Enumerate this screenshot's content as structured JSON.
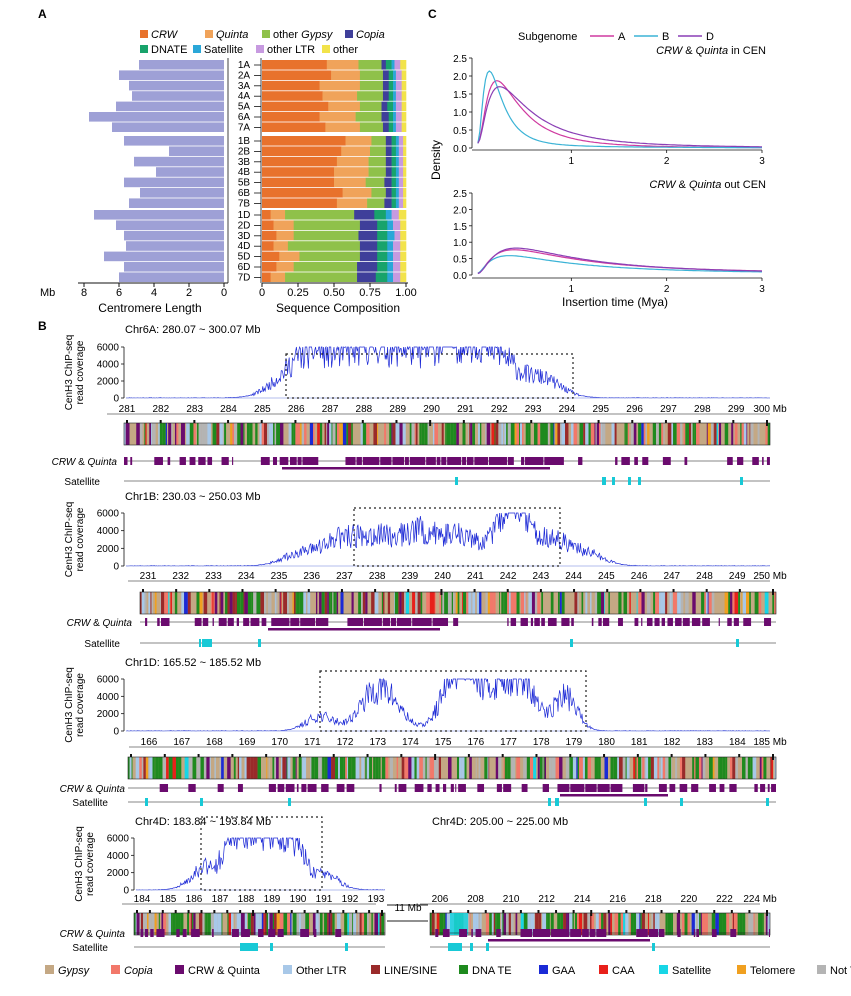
{
  "panel_labels": {
    "a": "A",
    "b": "B",
    "c": "C"
  },
  "colors": {
    "CRW": "#e8722c",
    "Quinta": "#f0a35a",
    "other_gypsy": "#8fc14a",
    "Copia": "#3f3f9a",
    "DNATE": "#18a36b",
    "Satellite": "#2aa7d8",
    "other_LTR": "#c79ae0",
    "other": "#f2e34a",
    "centromere_bar": "#9ea0d6",
    "chip": "#1d2ad6",
    "chip_flat": "#9aa6e6",
    "crw_track": "#6a0b6e",
    "sat_track": "#18c9d6",
    "subgenome_A": "#cf3aa0",
    "subgenome_B": "#3bb3d6",
    "subgenome_D": "#8a3fb5"
  },
  "panel_a": {
    "legend": {
      "crw": "CRW",
      "quinta": "Quinta",
      "other": "other ",
      "gypsy": "Gypsy",
      "copia": "Copia",
      "dnate": "DNATE",
      "satellite": "Satellite",
      "other_ltr": "other LTR",
      "other_cat": "other"
    },
    "chromosomes": [
      "1A",
      "2A",
      "3A",
      "4A",
      "5A",
      "6A",
      "7A",
      "1B",
      "2B",
      "3B",
      "4B",
      "5B",
      "6B",
      "7B",
      "1D",
      "2D",
      "3D",
      "4D",
      "5D",
      "6D",
      "7D"
    ],
    "left_axis": {
      "unit": "Mb",
      "ticks": [
        "8",
        "6",
        "4",
        "2",
        "0"
      ],
      "label": "Centromere Length"
    },
    "right_axis": {
      "ticks": [
        "0",
        "0.25",
        "0.50",
        "0.75",
        "1.00"
      ],
      "label": "Sequence Composition"
    }
  },
  "panel_c": {
    "legend_title": "Subgenome",
    "legend_items": [
      "A",
      "B",
      "D"
    ],
    "title_in_em": "CRW",
    "title_in_mid": " & ",
    "title_in_em2": "Quinta",
    "title_in_rest": " in CEN",
    "title_out_rest": " out CEN",
    "ylabel": "Density",
    "yticks": [
      "2.5",
      "2.0",
      "1.5",
      "1.0",
      "0.5",
      "0.0"
    ],
    "xticks": [
      "1",
      "2",
      "3"
    ],
    "xlabel": "Insertion time (Mya)"
  },
  "panel_b": {
    "ylabel_1": "CenH3 ChIP-seq",
    "ylabel_2": "read coverage",
    "yticks": [
      "6000",
      "4000",
      "2000",
      "0"
    ],
    "track_crw_em1": "CRW",
    "track_crw_mid": " & ",
    "track_crw_em2": "Quinta",
    "track_sat": "Satellite",
    "chr6a": {
      "title": "Chr6A: 280.07 ~ 300.07 Mb",
      "ticks": [
        "281",
        "282",
        "283",
        "284",
        "285",
        "286",
        "287",
        "288",
        "289",
        "290",
        "291",
        "292",
        "293",
        "294",
        "295",
        "296",
        "297",
        "298",
        "299",
        "300 Mb"
      ]
    },
    "chr1b": {
      "title": "Chr1B: 230.03 ~ 250.03 Mb",
      "ticks": [
        "231",
        "232",
        "233",
        "234",
        "235",
        "236",
        "237",
        "238",
        "239",
        "240",
        "241",
        "242",
        "243",
        "244",
        "245",
        "246",
        "247",
        "248",
        "249",
        "250 Mb"
      ]
    },
    "chr1d": {
      "title": "Chr1D: 165.52 ~ 185.52 Mb",
      "ticks": [
        "166",
        "167",
        "168",
        "169",
        "170",
        "171",
        "172",
        "173",
        "174",
        "175",
        "176",
        "177",
        "178",
        "179",
        "180",
        "181",
        "182",
        "183",
        "184",
        "185 Mb"
      ]
    },
    "chr4d_1": {
      "title": "Chr4D: 183.84 ~ 193.84 Mb",
      "ticks": [
        "184",
        "185",
        "186",
        "187",
        "188",
        "189",
        "190",
        "191",
        "192",
        "193"
      ]
    },
    "chr4d_2": {
      "title": "Chr4D: 205.00 ~ 225.00 Mb",
      "ticks": [
        "206",
        "208",
        "210",
        "212",
        "214",
        "216",
        "218",
        "220",
        "222",
        "224 Mb"
      ]
    },
    "gap_label": "11 Mb",
    "legend": [
      {
        "label": "Gypsy",
        "italic": true,
        "color": "#c4a884"
      },
      {
        "label": "Copia",
        "italic": true,
        "color": "#f2786a"
      },
      {
        "label": "CRW & Quinta",
        "italic": false,
        "color": "#6a0b6e"
      },
      {
        "label": "Other LTR",
        "italic": false,
        "color": "#a8c8e8"
      },
      {
        "label": "LINE/SINE",
        "italic": false,
        "color": "#9a2a2a"
      },
      {
        "label": "DNA TE",
        "italic": false,
        "color": "#1e8a1e"
      },
      {
        "label": "GAA",
        "italic": false,
        "color": "#1a2ad6"
      },
      {
        "label": "CAA",
        "italic": false,
        "color": "#e8201a"
      },
      {
        "label": "Satellite",
        "italic": false,
        "color": "#18d6e6"
      },
      {
        "label": "Telomere",
        "italic": false,
        "color": "#f0a020"
      },
      {
        "label": "Not TE",
        "italic": false,
        "color": "#b4b4b4"
      }
    ]
  }
}
